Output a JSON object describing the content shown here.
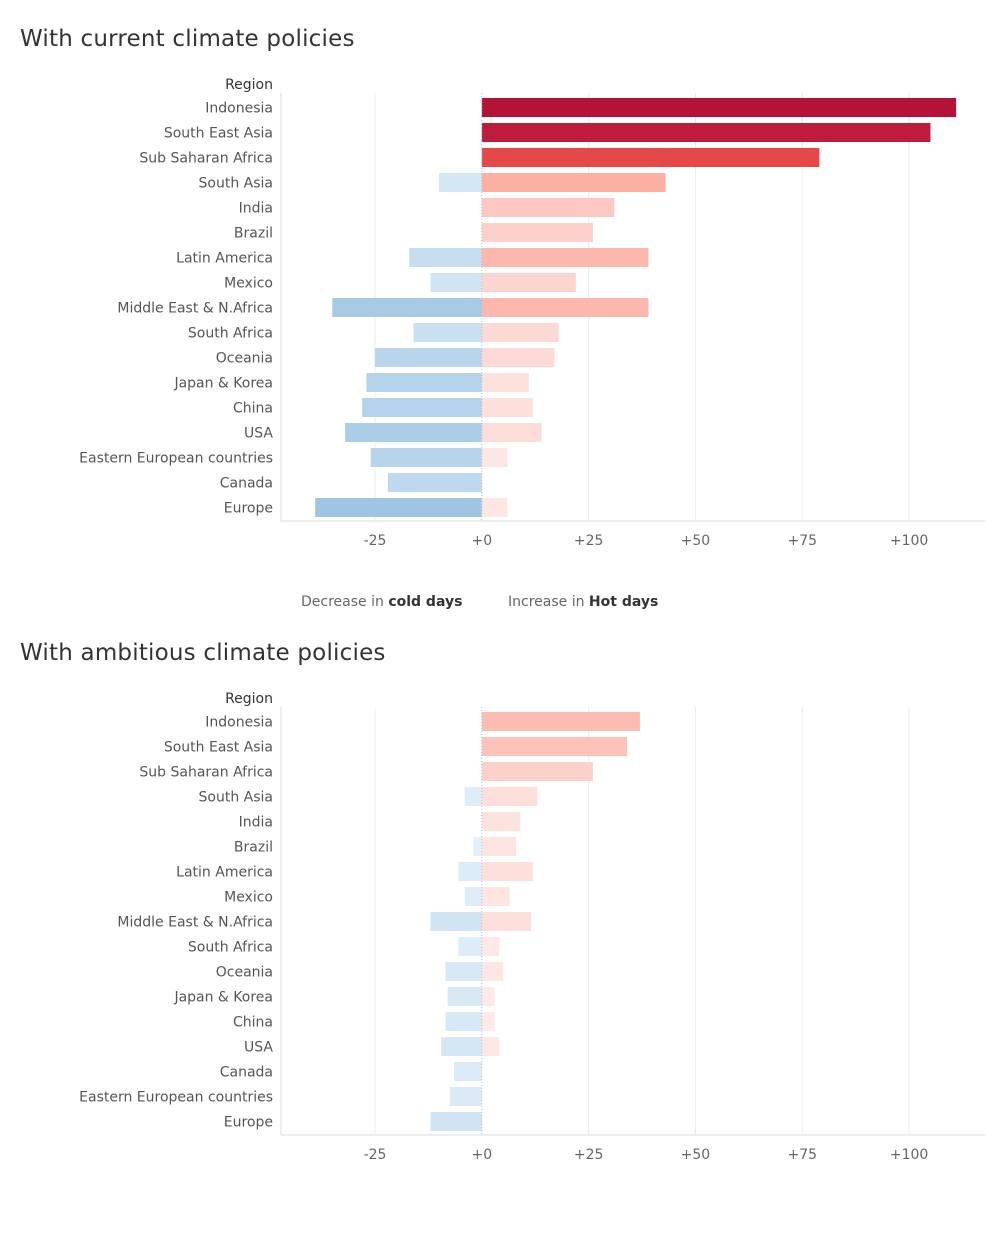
{
  "legend": {
    "cold_prefix": "Decrease in ",
    "cold_bold": "cold days",
    "hot_prefix": "Increase in ",
    "hot_bold": "Hot days"
  },
  "chart_data": [
    {
      "type": "bar",
      "title": "With current climate policies",
      "ylabel": "Region",
      "xlim": [
        -47,
        118
      ],
      "x_ticks": [
        -25,
        0,
        25,
        50,
        75,
        100
      ],
      "x_tick_labels": [
        "-25",
        "+0",
        "+25",
        "+50",
        "+75",
        "+100"
      ],
      "grid": true,
      "categories": [
        "Indonesia",
        "South East Asia",
        "Sub Saharan Africa",
        "South Asia",
        "India",
        "Brazil",
        "Latin America",
        "Mexico",
        "Middle East & N.Africa",
        "South Africa",
        "Oceania",
        "Japan & Korea",
        "China",
        "USA",
        "Eastern European countries",
        "Canada",
        "Europe"
      ],
      "series": [
        {
          "name": "Decrease in cold days",
          "values": [
            0,
            0,
            0,
            -10,
            0,
            0,
            -17,
            -12,
            -35,
            -16,
            -25,
            -27,
            -28,
            -32,
            -26,
            -22,
            -39
          ],
          "color": "#9ec4e2"
        },
        {
          "name": "Increase in Hot days",
          "values": [
            111,
            105,
            79,
            43,
            31,
            26,
            39,
            22,
            39,
            18,
            17,
            11,
            12,
            14,
            6,
            0,
            6
          ],
          "color": "#b51238"
        }
      ]
    },
    {
      "type": "bar",
      "title": "With ambitious climate policies",
      "ylabel": "Region",
      "xlim": [
        -47,
        118
      ],
      "x_ticks": [
        -25,
        0,
        25,
        50,
        75,
        100
      ],
      "x_tick_labels": [
        "-25",
        "+0",
        "+25",
        "+50",
        "+75",
        "+100"
      ],
      "grid": true,
      "categories": [
        "Indonesia",
        "South East Asia",
        "Sub Saharan Africa",
        "South Asia",
        "India",
        "Brazil",
        "Latin America",
        "Mexico",
        "Middle East & N.Africa",
        "South Africa",
        "Oceania",
        "Japan & Korea",
        "China",
        "USA",
        "Canada",
        "Eastern European countries",
        "Europe"
      ],
      "series": [
        {
          "name": "Decrease in cold days",
          "values": [
            0,
            0,
            0,
            -4,
            0,
            -2,
            -5.5,
            -4,
            -12,
            -5.5,
            -8.5,
            -8,
            -8.5,
            -9.5,
            -6.5,
            -7.5,
            -12
          ],
          "color": "#9ec4e2"
        },
        {
          "name": "Increase in Hot days",
          "values": [
            37,
            34,
            26,
            13,
            9,
            8,
            12,
            6.5,
            11.5,
            4,
            5,
            3,
            3,
            4,
            0,
            0,
            0
          ],
          "color": "#b51238"
        }
      ]
    }
  ]
}
